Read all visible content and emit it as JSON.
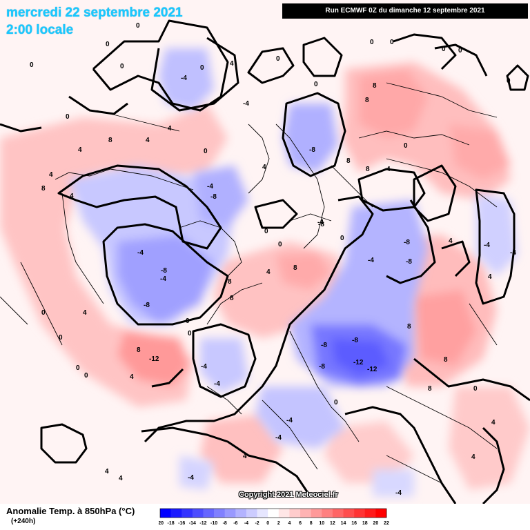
{
  "header": {
    "date": "mercredi 22 septembre 2021",
    "local_time": "2:00 locale",
    "run_info": "Run ECMWF 0Z du dimanche 12 septembre 2021"
  },
  "footer": {
    "variable": "Anomalie Temp. à 850hPa (°C)",
    "lead_time": "(+240h)",
    "copyright": "Copyright 2021 Meteociel.fr"
  },
  "legend": {
    "ticks": [
      "-20",
      "-18",
      "-16",
      "-14",
      "-12",
      "-10",
      "-8",
      "-6",
      "-4",
      "-2",
      "0",
      "2",
      "4",
      "6",
      "8",
      "10",
      "12",
      "14",
      "16",
      "18",
      "20",
      "22"
    ],
    "colors": [
      "#0000ff",
      "#1a1aff",
      "#3333ff",
      "#4d4dff",
      "#6666ff",
      "#8080ff",
      "#9999ff",
      "#b3b3ff",
      "#ccccff",
      "#e6e6ff",
      "#ffffff",
      "#ffe6e6",
      "#ffcccc",
      "#ffb3b3",
      "#ff9999",
      "#ff8080",
      "#ff6666",
      "#ff4d4d",
      "#ff3333",
      "#ff1a1a",
      "#ff0000"
    ]
  },
  "map": {
    "projection": "polar stereographic, North Pole centered",
    "warm_color": "#ffb3b3",
    "cold_color": "#9999ff",
    "contour_color": "#000000",
    "labels": [
      "0",
      "0",
      "0",
      "0",
      "0",
      "0",
      "0",
      "0",
      "0",
      "0",
      "0",
      "0",
      "0",
      "0",
      "0",
      "0",
      "0",
      "0",
      "0",
      "0",
      "0",
      "0",
      "0",
      "0",
      "0",
      "0",
      "4",
      "4",
      "4",
      "4",
      "4",
      "4",
      "4",
      "4",
      "4",
      "4",
      "4",
      "4",
      "4",
      "4",
      "4",
      "4",
      "4",
      "4",
      "-4",
      "-4",
      "-4",
      "-4",
      "-4",
      "-4",
      "-4",
      "-4",
      "-4",
      "-4",
      "-4",
      "-4",
      "-4",
      "-4",
      "-4",
      "8",
      "8",
      "8",
      "8",
      "8",
      "8",
      "8",
      "8",
      "8",
      "8",
      "8",
      "8",
      "8",
      "-8",
      "-8",
      "-8",
      "-8",
      "-8",
      "-8",
      "-8",
      "-8",
      "-8",
      "-8",
      "-12",
      "-12",
      "-12"
    ]
  }
}
